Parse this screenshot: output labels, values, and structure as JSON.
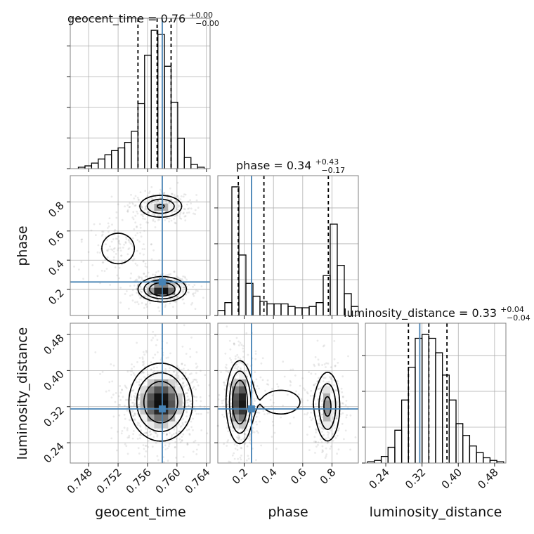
{
  "chart_data": {
    "type": "corner",
    "parameters": [
      "geocent_time",
      "phase",
      "luminosity_distance"
    ],
    "truths": {
      "geocent_time": 0.758,
      "phase": 0.25,
      "luminosity_distance": 0.315
    },
    "truth_color": "#4682b4",
    "axes": {
      "geocent_time": {
        "range": [
          0.7455,
          0.7645
        ],
        "ticks": [
          "0.748",
          "0.752",
          "0.756",
          "0.760",
          "0.764"
        ],
        "tick_values": [
          0.748,
          0.752,
          0.756,
          0.76,
          0.764
        ]
      },
      "phase": {
        "range": [
          0.02,
          0.98
        ],
        "ticks": [
          "0.2",
          "0.4",
          "0.6",
          "0.8"
        ],
        "tick_values": [
          0.2,
          0.4,
          0.6,
          0.8
        ]
      },
      "luminosity_distance": {
        "range": [
          0.195,
          0.505
        ],
        "ticks": [
          "0.24",
          "0.32",
          "0.40",
          "0.48"
        ],
        "tick_values": [
          0.24,
          0.32,
          0.4,
          0.48
        ]
      }
    },
    "diagonal": [
      {
        "param": "geocent_time",
        "title_text": "geocent_time = 0.76",
        "title_sup": "+0.00",
        "title_sub": "−0.00",
        "quantiles": [
          0.7547,
          0.7573,
          0.7592
        ],
        "bin_edges": [
          0.7466,
          0.7475,
          0.7484,
          0.7493,
          0.7502,
          0.7511,
          0.752,
          0.7529,
          0.7538,
          0.7547,
          0.7556,
          0.7565,
          0.7574,
          0.7583,
          0.7592,
          0.7601,
          0.761,
          0.7619,
          0.7628,
          0.7637
        ],
        "counts": [
          1,
          2,
          4,
          7,
          10,
          13,
          15,
          19,
          27,
          47,
          82,
          100,
          97,
          74,
          48,
          22,
          8,
          3,
          1
        ]
      },
      {
        "param": "phase",
        "title_text": "phase = 0.34",
        "title_sup": "+0.43",
        "title_sub": "−0.17",
        "quantiles": [
          0.16,
          0.335,
          0.775
        ],
        "bin_edges": [
          0.02,
          0.068,
          0.116,
          0.164,
          0.212,
          0.26,
          0.308,
          0.356,
          0.404,
          0.452,
          0.5,
          0.548,
          0.596,
          0.644,
          0.692,
          0.74,
          0.788,
          0.836,
          0.884,
          0.932,
          0.98
        ],
        "counts": [
          4,
          10,
          100,
          47,
          25,
          15,
          11,
          9,
          9,
          9,
          7,
          6,
          6,
          7,
          10,
          31,
          71,
          39,
          17,
          7
        ]
      },
      {
        "param": "luminosity_distance",
        "title_text": "luminosity_distance = 0.33",
        "title_sup": "+0.04",
        "title_sub": "−0.04",
        "quantiles": [
          0.29,
          0.335,
          0.375
        ],
        "bin_edges": [
          0.2,
          0.215,
          0.23,
          0.245,
          0.26,
          0.275,
          0.29,
          0.305,
          0.32,
          0.335,
          0.35,
          0.365,
          0.38,
          0.395,
          0.41,
          0.425,
          0.44,
          0.455,
          0.47,
          0.485,
          0.5
        ],
        "counts": [
          1,
          2,
          5,
          12,
          25,
          48,
          73,
          95,
          98,
          95,
          84,
          67,
          48,
          30,
          21,
          13,
          8,
          4,
          2,
          1
        ]
      }
    ],
    "joint": [
      {
        "x": "geocent_time",
        "y": "phase",
        "modes": [
          {
            "cx": 0.758,
            "cy": 0.2,
            "sx": 0.0016,
            "sy": 0.042,
            "weight": 0.55
          },
          {
            "cx": 0.7578,
            "cy": 0.77,
            "sx": 0.0016,
            "sy": 0.042,
            "weight": 0.32
          },
          {
            "cx": 0.752,
            "cy": 0.48,
            "sx": 0.0019,
            "sy": 0.09,
            "weight": 0.13
          }
        ]
      },
      {
        "x": "geocent_time",
        "y": "luminosity_distance",
        "modes": [
          {
            "cx": 0.7578,
            "cy": 0.33,
            "sx": 0.0021,
            "sy": 0.042,
            "weight": 1.0
          }
        ]
      },
      {
        "x": "phase",
        "y": "luminosity_distance",
        "modes": [
          {
            "cx": 0.17,
            "cy": 0.33,
            "sx": 0.045,
            "sy": 0.045,
            "weight": 0.55
          },
          {
            "cx": 0.77,
            "cy": 0.32,
            "sx": 0.045,
            "sy": 0.042,
            "weight": 0.35
          },
          {
            "cx": 0.45,
            "cy": 0.33,
            "sx": 0.15,
            "sy": 0.03,
            "weight": 0.1
          }
        ]
      }
    ]
  }
}
